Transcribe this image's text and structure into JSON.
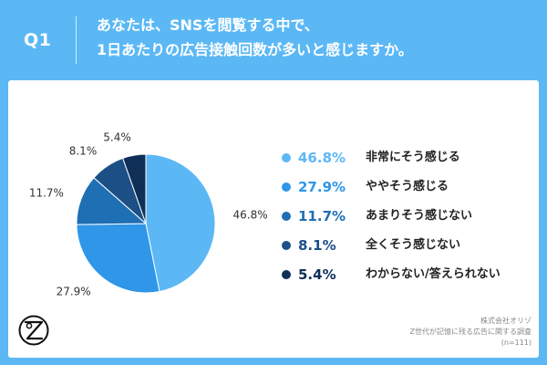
{
  "header": {
    "q_label": "Q1",
    "question_line1": "あなたは、SNSを閲覧する中で、",
    "question_line2": "1日あたりの広告接触回数が多いと感じますか。"
  },
  "chart_data": {
    "type": "pie",
    "title": "",
    "slices": [
      {
        "label": "非常にそう感じる",
        "value": 46.8,
        "display": "46.8%",
        "color": "#5bb8f5"
      },
      {
        "label": "ややそう感じる",
        "value": 27.9,
        "display": "27.9%",
        "color": "#2f96e8"
      },
      {
        "label": "あまりそう感じない",
        "value": 11.7,
        "display": "11.7%",
        "color": "#1e6fb3"
      },
      {
        "label": "全くそう感じない",
        "value": 8.1,
        "display": "8.1%",
        "color": "#1b4f86"
      },
      {
        "label": "わからない/答えられない",
        "value": 5.4,
        "display": "5.4%",
        "color": "#0f2f57"
      }
    ],
    "legend_position": "right",
    "start": "top",
    "direction": "clockwise"
  },
  "footer": {
    "source_line1": "株式会社オリゾ",
    "source_line2": "Z世代が記憶に残る広告に関する調査",
    "source_line3": "(n=111)"
  },
  "icons": {
    "logo": "orizo-logo-icon"
  }
}
